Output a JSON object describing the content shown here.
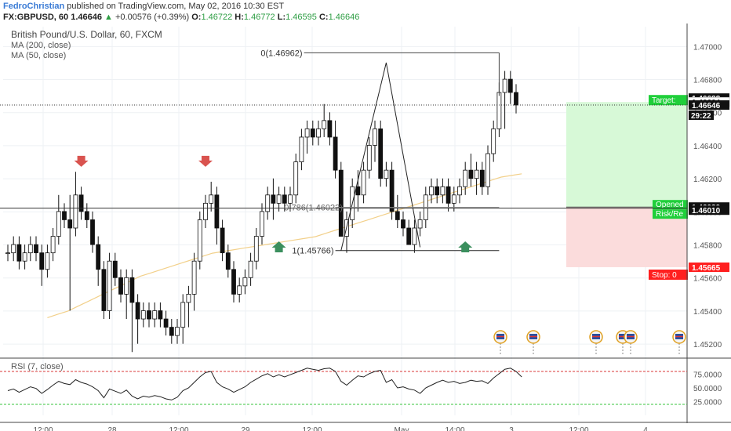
{
  "header": {
    "author": "FedroChristian",
    "published_text": "published on TradingView.com, May 02, 2016 10:30 EST",
    "symbol": "FX:GBPUSD, 60",
    "last": "1.46646",
    "change_arrow": "▲",
    "change": "+0.00576 (+0.39%)",
    "o_label": "O:",
    "o_value": "1.46722",
    "h_label": "H:",
    "h_value": "1.46772",
    "l_label": "L:",
    "l_value": "1.46595",
    "c_label": "C:",
    "c_value": "1.46646"
  },
  "legend": {
    "title": "British Pound/U.S. Dollar, 60, FXCM",
    "ma200": "MA (200, close)",
    "ma50": "MA (50, close)",
    "rsi": "RSI (7, close)"
  },
  "colors": {
    "bull": "#ffffff",
    "bear": "#111111",
    "wick": "#111111",
    "ma": "#f2d08a",
    "target_zone": "#d7f9d7",
    "stop_zone": "#fbdcdc",
    "label_green": "#1fcf3a",
    "label_red": "#ff1f1f",
    "label_black": "#111111",
    "arrow_down": "#d9534f",
    "arrow_up": "#3b8f5e",
    "rsi_line": "#222222",
    "rsi_band": "#d93a3a",
    "rsi_low": "#39c43d"
  },
  "chart_data": {
    "type": "candlestick",
    "title": "British Pound/U.S. Dollar, 60, FXCM",
    "ylim": [
      1.4512,
      1.4712
    ],
    "y_ticks": [
      "1.47000",
      "1.46800",
      "1.46600",
      "1.46400",
      "1.46200",
      "1.46000",
      "1.45800",
      "1.45600",
      "1.45400",
      "1.45200"
    ],
    "x_ticks": [
      "12:00",
      "28",
      "12:00",
      "29",
      "12:00",
      "May",
      "14:00",
      "3",
      "12:00",
      "4"
    ],
    "candles": [
      {
        "o": 1.45752,
        "h": 1.45802,
        "l": 1.45702,
        "c": 1.45752
      },
      {
        "o": 1.45752,
        "h": 1.45852,
        "l": 1.45702,
        "c": 1.45802
      },
      {
        "o": 1.45802,
        "h": 1.45852,
        "l": 1.45652,
        "c": 1.45702
      },
      {
        "o": 1.45702,
        "h": 1.45802,
        "l": 1.45652,
        "c": 1.45752
      },
      {
        "o": 1.45752,
        "h": 1.45852,
        "l": 1.45702,
        "c": 1.45802
      },
      {
        "o": 1.45802,
        "h": 1.45852,
        "l": 1.45702,
        "c": 1.45752
      },
      {
        "o": 1.45752,
        "h": 1.45802,
        "l": 1.45552,
        "c": 1.45652
      },
      {
        "o": 1.45652,
        "h": 1.45802,
        "l": 1.45602,
        "c": 1.45752
      },
      {
        "o": 1.45752,
        "h": 1.45902,
        "l": 1.45702,
        "c": 1.45852
      },
      {
        "o": 1.45852,
        "h": 1.46102,
        "l": 1.45802,
        "c": 1.46002
      },
      {
        "o": 1.46002,
        "h": 1.46052,
        "l": 1.45902,
        "c": 1.45952
      },
      {
        "o": 1.45952,
        "h": 1.46102,
        "l": 1.45402,
        "c": 1.45902
      },
      {
        "o": 1.45902,
        "h": 1.46242,
        "l": 1.45852,
        "c": 1.46102
      },
      {
        "o": 1.46102,
        "h": 1.46152,
        "l": 1.45952,
        "c": 1.46002
      },
      {
        "o": 1.46002,
        "h": 1.46052,
        "l": 1.45902,
        "c": 1.45952
      },
      {
        "o": 1.45952,
        "h": 1.46002,
        "l": 1.45752,
        "c": 1.45802
      },
      {
        "o": 1.45802,
        "h": 1.45852,
        "l": 1.45552,
        "c": 1.45652
      },
      {
        "o": 1.45652,
        "h": 1.45702,
        "l": 1.45352,
        "c": 1.45402
      },
      {
        "o": 1.45402,
        "h": 1.45752,
        "l": 1.45352,
        "c": 1.45702
      },
      {
        "o": 1.45702,
        "h": 1.45752,
        "l": 1.45552,
        "c": 1.45602
      },
      {
        "o": 1.45602,
        "h": 1.45652,
        "l": 1.45452,
        "c": 1.45502
      },
      {
        "o": 1.45502,
        "h": 1.45652,
        "l": 1.45352,
        "c": 1.45602
      },
      {
        "o": 1.45602,
        "h": 1.45652,
        "l": 1.45152,
        "c": 1.45452
      },
      {
        "o": 1.45452,
        "h": 1.45502,
        "l": 1.45202,
        "c": 1.45352
      },
      {
        "o": 1.45352,
        "h": 1.45452,
        "l": 1.45302,
        "c": 1.45402
      },
      {
        "o": 1.45402,
        "h": 1.45452,
        "l": 1.45302,
        "c": 1.45352
      },
      {
        "o": 1.45352,
        "h": 1.45452,
        "l": 1.45302,
        "c": 1.45402
      },
      {
        "o": 1.45402,
        "h": 1.45452,
        "l": 1.45302,
        "c": 1.45352
      },
      {
        "o": 1.45352,
        "h": 1.45402,
        "l": 1.45252,
        "c": 1.45302
      },
      {
        "o": 1.45302,
        "h": 1.45352,
        "l": 1.45202,
        "c": 1.45252
      },
      {
        "o": 1.45252,
        "h": 1.45352,
        "l": 1.45202,
        "c": 1.45302
      },
      {
        "o": 1.45302,
        "h": 1.45502,
        "l": 1.45202,
        "c": 1.45452
      },
      {
        "o": 1.45452,
        "h": 1.45552,
        "l": 1.45302,
        "c": 1.45502
      },
      {
        "o": 1.45502,
        "h": 1.45752,
        "l": 1.45402,
        "c": 1.45702
      },
      {
        "o": 1.45702,
        "h": 1.46002,
        "l": 1.45652,
        "c": 1.45952
      },
      {
        "o": 1.45952,
        "h": 1.46102,
        "l": 1.45902,
        "c": 1.46052
      },
      {
        "o": 1.46052,
        "h": 1.46182,
        "l": 1.46002,
        "c": 1.46102
      },
      {
        "o": 1.46102,
        "h": 1.46152,
        "l": 1.45802,
        "c": 1.45902
      },
      {
        "o": 1.45902,
        "h": 1.45952,
        "l": 1.45702,
        "c": 1.45752
      },
      {
        "o": 1.45752,
        "h": 1.45802,
        "l": 1.45602,
        "c": 1.45652
      },
      {
        "o": 1.45652,
        "h": 1.45702,
        "l": 1.45452,
        "c": 1.45502
      },
      {
        "o": 1.45502,
        "h": 1.45602,
        "l": 1.45452,
        "c": 1.45552
      },
      {
        "o": 1.45552,
        "h": 1.45652,
        "l": 1.45502,
        "c": 1.45602
      },
      {
        "o": 1.45602,
        "h": 1.45752,
        "l": 1.45552,
        "c": 1.45702
      },
      {
        "o": 1.45702,
        "h": 1.45902,
        "l": 1.45652,
        "c": 1.45852
      },
      {
        "o": 1.45852,
        "h": 1.46052,
        "l": 1.45802,
        "c": 1.46002
      },
      {
        "o": 1.46002,
        "h": 1.46152,
        "l": 1.45952,
        "c": 1.46102
      },
      {
        "o": 1.46102,
        "h": 1.46202,
        "l": 1.45952,
        "c": 1.46052
      },
      {
        "o": 1.46052,
        "h": 1.46152,
        "l": 1.46002,
        "c": 1.46102
      },
      {
        "o": 1.46102,
        "h": 1.46152,
        "l": 1.46002,
        "c": 1.46052
      },
      {
        "o": 1.46052,
        "h": 1.46152,
        "l": 1.46002,
        "c": 1.46102
      },
      {
        "o": 1.46102,
        "h": 1.46352,
        "l": 1.46052,
        "c": 1.46302
      },
      {
        "o": 1.46302,
        "h": 1.46502,
        "l": 1.46252,
        "c": 1.46452
      },
      {
        "o": 1.46452,
        "h": 1.46552,
        "l": 1.46352,
        "c": 1.46502
      },
      {
        "o": 1.46502,
        "h": 1.46552,
        "l": 1.46402,
        "c": 1.46452
      },
      {
        "o": 1.46452,
        "h": 1.46552,
        "l": 1.46402,
        "c": 1.46502
      },
      {
        "o": 1.46502,
        "h": 1.46652,
        "l": 1.46452,
        "c": 1.46552
      },
      {
        "o": 1.46552,
        "h": 1.46602,
        "l": 1.46402,
        "c": 1.46452
      },
      {
        "o": 1.46452,
        "h": 1.46552,
        "l": 1.46202,
        "c": 1.46252
      },
      {
        "o": 1.46252,
        "h": 1.46302,
        "l": 1.45852,
        "c": 1.45852
      },
      {
        "o": 1.45852,
        "h": 1.46002,
        "l": 1.45752,
        "c": 1.45952
      },
      {
        "o": 1.45952,
        "h": 1.46202,
        "l": 1.45902,
        "c": 1.46152
      },
      {
        "o": 1.46152,
        "h": 1.46252,
        "l": 1.46002,
        "c": 1.46102
      },
      {
        "o": 1.46102,
        "h": 1.46302,
        "l": 1.46052,
        "c": 1.46252
      },
      {
        "o": 1.46252,
        "h": 1.46452,
        "l": 1.46202,
        "c": 1.46402
      },
      {
        "o": 1.46402,
        "h": 1.46552,
        "l": 1.46302,
        "c": 1.46502
      },
      {
        "o": 1.46502,
        "h": 1.46552,
        "l": 1.46152,
        "c": 1.46202
      },
      {
        "o": 1.46202,
        "h": 1.46302,
        "l": 1.46152,
        "c": 1.46252
      },
      {
        "o": 1.46252,
        "h": 1.46302,
        "l": 1.45952,
        "c": 1.46002
      },
      {
        "o": 1.46002,
        "h": 1.46102,
        "l": 1.45902,
        "c": 1.45952
      },
      {
        "o": 1.45952,
        "h": 1.46002,
        "l": 1.45852,
        "c": 1.45902
      },
      {
        "o": 1.45902,
        "h": 1.45952,
        "l": 1.45802,
        "c": 1.45802
      },
      {
        "o": 1.45802,
        "h": 1.45952,
        "l": 1.45752,
        "c": 1.45902
      },
      {
        "o": 1.45902,
        "h": 1.46002,
        "l": 1.45852,
        "c": 1.45952
      },
      {
        "o": 1.45952,
        "h": 1.46152,
        "l": 1.45902,
        "c": 1.46102
      },
      {
        "o": 1.46102,
        "h": 1.46202,
        "l": 1.46052,
        "c": 1.46152
      },
      {
        "o": 1.46152,
        "h": 1.46202,
        "l": 1.46052,
        "c": 1.46102
      },
      {
        "o": 1.46102,
        "h": 1.46202,
        "l": 1.46052,
        "c": 1.46152
      },
      {
        "o": 1.46152,
        "h": 1.46202,
        "l": 1.46002,
        "c": 1.46052
      },
      {
        "o": 1.46052,
        "h": 1.46152,
        "l": 1.46002,
        "c": 1.46102
      },
      {
        "o": 1.46102,
        "h": 1.46202,
        "l": 1.46052,
        "c": 1.46152
      },
      {
        "o": 1.46152,
        "h": 1.46302,
        "l": 1.46102,
        "c": 1.46252
      },
      {
        "o": 1.46252,
        "h": 1.46352,
        "l": 1.46152,
        "c": 1.46202
      },
      {
        "o": 1.46202,
        "h": 1.46302,
        "l": 1.46102,
        "c": 1.46252
      },
      {
        "o": 1.46252,
        "h": 1.46302,
        "l": 1.46102,
        "c": 1.46152
      },
      {
        "o": 1.46152,
        "h": 1.46402,
        "l": 1.46102,
        "c": 1.46352
      },
      {
        "o": 1.46352,
        "h": 1.46552,
        "l": 1.46302,
        "c": 1.46502
      },
      {
        "o": 1.46502,
        "h": 1.46782,
        "l": 1.46452,
        "c": 1.46722
      },
      {
        "o": 1.46722,
        "h": 1.46852,
        "l": 1.46502,
        "c": 1.46802
      },
      {
        "o": 1.46802,
        "h": 1.46852,
        "l": 1.46652,
        "c": 1.46722
      },
      {
        "o": 1.46722,
        "h": 1.46772,
        "l": 1.46595,
        "c": 1.46646
      }
    ],
    "ma_series": [
      1.4536,
      1.4538,
      1.454,
      1.4543,
      1.4546,
      1.4549,
      1.4552,
      1.4555,
      1.4558,
      1.4561,
      1.4563,
      1.4565,
      1.4567,
      1.4569,
      1.4571,
      1.4573,
      1.4575,
      1.4576,
      1.4577,
      1.4578,
      1.4579,
      1.458,
      1.4581,
      1.4582,
      1.4583,
      1.4584,
      1.4585,
      1.4587,
      1.4589,
      1.4591,
      1.4593,
      1.4595,
      1.4597,
      1.4599,
      1.4601,
      1.4603,
      1.4605,
      1.4607,
      1.4609,
      1.4611,
      1.4613,
      1.4615,
      1.4617,
      1.4619,
      1.4621,
      1.4622,
      1.4623
    ],
    "ma_start_index": 7,
    "ma_end_index": 91,
    "pattern_points": [
      [
        59,
        1.45766
      ],
      [
        67,
        1.46902
      ],
      [
        73,
        1.45786
      ]
    ],
    "fib_0": {
      "label": "0(1.46962)",
      "value": 1.46962
    },
    "fib_786": {
      "label": "0.786(1.46022)",
      "value": 1.46022
    },
    "fib_1": {
      "label": "1(1.45766)",
      "value": 1.45766
    },
    "fib_left_index": 58,
    "fib_right_index": 87,
    "last_price_line": 1.46646,
    "horizontal_level": 1.46022,
    "position": {
      "open": 1.46029,
      "target": 1.46664,
      "stop": 1.45665,
      "left_index": 103,
      "right_index": 125,
      "open_label": "Opened",
      "rr_label": "Risk/Re",
      "target_label": "Target: ",
      "stop_label": "Stop: 0"
    },
    "arrows_down": [
      {
        "i": 13,
        "price": 1.46282
      },
      {
        "i": 35,
        "price": 1.46282
      }
    ],
    "arrows_up": [
      {
        "i": 48,
        "price": 1.45812
      },
      {
        "i": 81,
        "price": 1.45812
      }
    ],
    "price_labels": [
      {
        "value": 1.46688,
        "text": "1.46688",
        "style": "black"
      },
      {
        "value": 1.46664,
        "text": "1.46664",
        "style": "green_text"
      },
      {
        "value": 1.46646,
        "text": "1.46646",
        "style": "black"
      },
      {
        "value": 1.46029,
        "text": "1.46029",
        "style": "black"
      },
      {
        "value": 1.4601,
        "text": "1.46010",
        "style": "black"
      },
      {
        "value": 1.45665,
        "text": "1.45665",
        "style": "red"
      }
    ],
    "countdown": "29:22",
    "events_x_index": [
      91,
      98,
      110,
      115,
      117,
      125
    ],
    "rsi": {
      "label": "RSI (7, close)",
      "y_ticks": [
        "75.0000",
        "50.0000",
        "25.0000"
      ],
      "upper": 80,
      "lower": 20,
      "values": [
        45,
        48,
        42,
        47,
        52,
        49,
        40,
        47,
        55,
        62,
        58,
        56,
        65,
        60,
        57,
        52,
        45,
        32,
        48,
        44,
        40,
        46,
        35,
        30,
        35,
        33,
        36,
        34,
        30,
        28,
        33,
        45,
        50,
        60,
        70,
        78,
        80,
        60,
        52,
        48,
        42,
        47,
        52,
        60,
        66,
        72,
        76,
        70,
        74,
        70,
        74,
        78,
        82,
        86,
        84,
        82,
        85,
        86,
        80,
        62,
        55,
        64,
        72,
        70,
        76,
        80,
        82,
        60,
        65,
        50,
        52,
        48,
        46,
        40,
        50,
        55,
        60,
        64,
        60,
        62,
        58,
        60,
        64,
        62,
        63,
        58,
        68,
        76,
        84,
        86,
        80,
        70
      ]
    }
  }
}
